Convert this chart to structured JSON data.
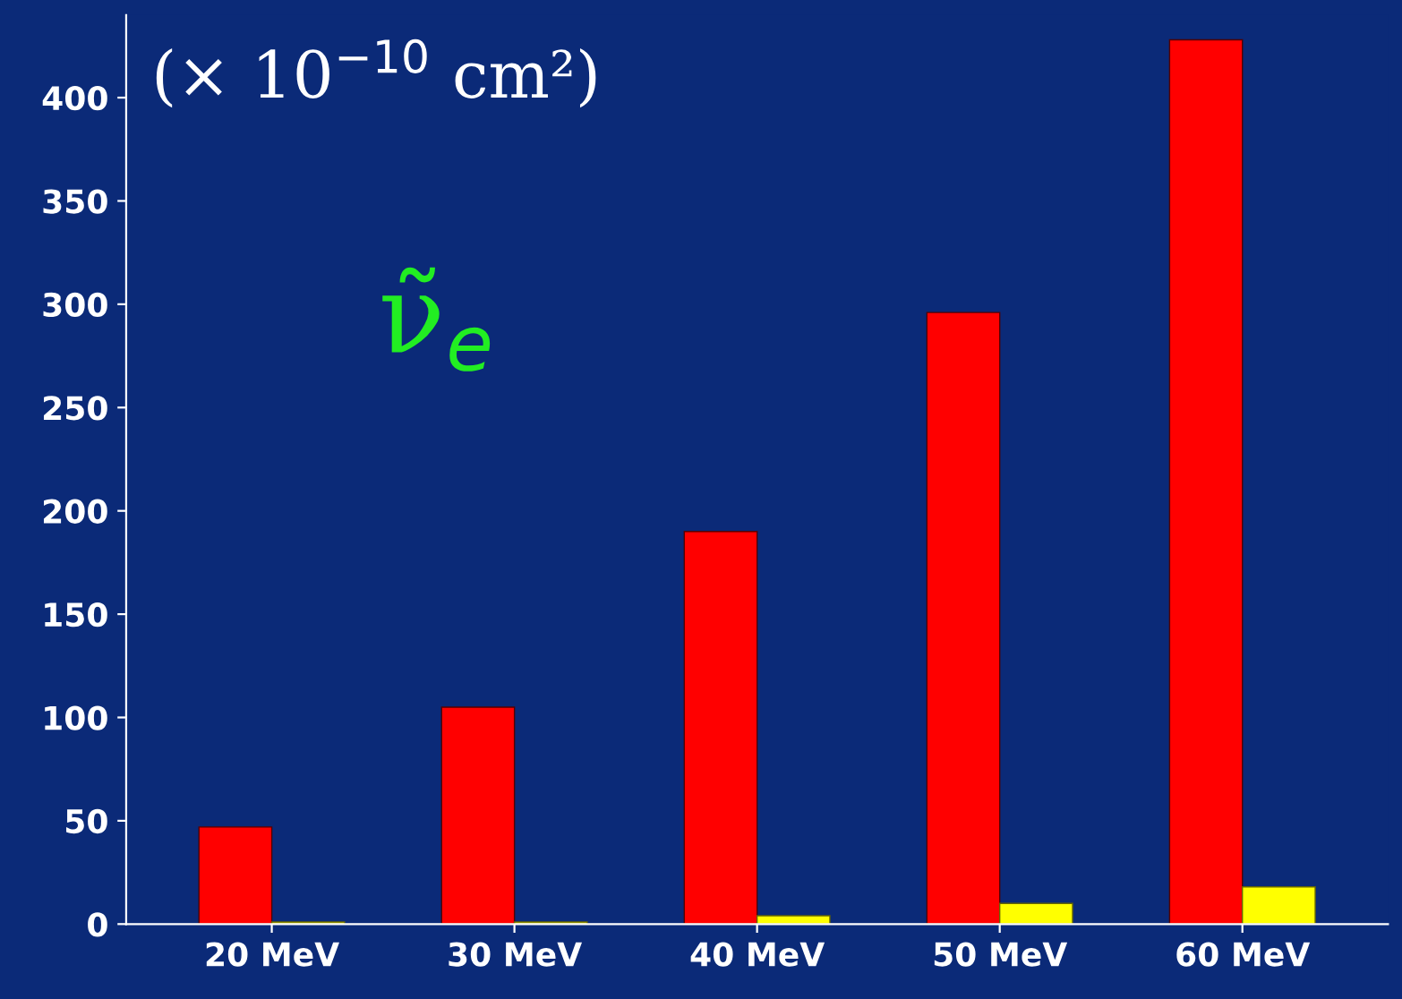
{
  "chart_data": {
    "type": "bar",
    "categories": [
      "20 MeV",
      "30 MeV",
      "40 MeV",
      "50 MeV",
      "60 MeV"
    ],
    "series": [
      {
        "color": "#ff0000",
        "values": [
          47,
          105,
          190,
          296,
          428
        ]
      },
      {
        "color": "#ffff00",
        "values": [
          1,
          1,
          4,
          10,
          18
        ]
      }
    ],
    "ylim": [
      0,
      440
    ],
    "yticks": [
      0,
      50,
      100,
      150,
      200,
      250,
      300,
      350,
      400
    ],
    "grid": false,
    "annotations": [
      "(× 10$^{−10}$ cm²)",
      "ν̃$_{e}$"
    ]
  }
}
